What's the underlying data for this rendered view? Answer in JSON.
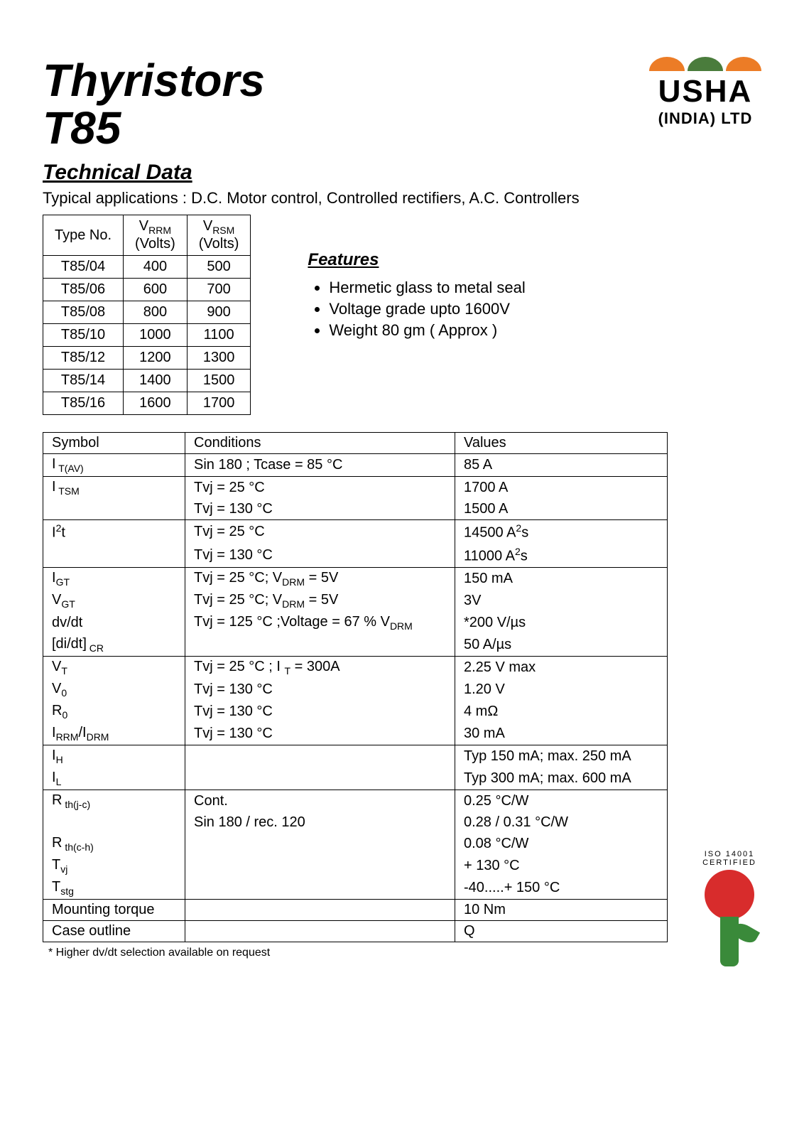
{
  "header": {
    "title1": "Thyristors",
    "title2": "T85",
    "logo_brand": "USHA",
    "logo_sub": "(INDIA) LTD",
    "swoosh_colors": [
      "#ec7c26",
      "#4a7c3c",
      "#ec7c26"
    ]
  },
  "subtitle": "Technical Data",
  "applications": "Typical applications : D.C. Motor control, Controlled rectifiers, A.C. Controllers",
  "type_table": {
    "headers": {
      "col1": "Type No.",
      "col2_main": "V",
      "col2_sub": "RRM",
      "col2_unit": "(Volts)",
      "col3_main": "V",
      "col3_sub": "RSM",
      "col3_unit": "(Volts)"
    },
    "rows": [
      {
        "type": "T85/04",
        "vrrm": "400",
        "vrsm": "500"
      },
      {
        "type": "T85/06",
        "vrrm": "600",
        "vrsm": "700"
      },
      {
        "type": "T85/08",
        "vrrm": "800",
        "vrsm": "900"
      },
      {
        "type": "T85/10",
        "vrrm": "1000",
        "vrsm": "1100"
      },
      {
        "type": "T85/12",
        "vrrm": "1200",
        "vrsm": "1300"
      },
      {
        "type": "T85/14",
        "vrrm": "1400",
        "vrsm": "1500"
      },
      {
        "type": "T85/16",
        "vrrm": "1600",
        "vrsm": "1700"
      }
    ]
  },
  "features": {
    "title": "Features",
    "items": [
      "Hermetic glass to metal seal",
      "Voltage grade upto 1600V",
      "Weight  80 gm ( Approx )"
    ]
  },
  "spec_table": {
    "headers": {
      "symbol": "Symbol",
      "conditions": "Conditions",
      "values": "Values"
    },
    "rows": [
      {
        "sym_html": "I<span class='sub'> T(AV)</span>",
        "cond": "Sin 180 ; Tcase = 85 °C",
        "val": "85 A",
        "group": "single"
      },
      {
        "sym_html": "I<span class='sub'> TSM</span>",
        "cond": "Tvj = 25 °C",
        "val": "1700 A",
        "group": "start"
      },
      {
        "sym_html": "",
        "cond": "Tvj = 130 °C",
        "val": "1500 A",
        "group": "end"
      },
      {
        "sym_html": "I<span class='sup'>2</span>t",
        "cond": "Tvj = 25 °C",
        "val_html": "14500 A<span class='sup'>2</span>s",
        "group": "start"
      },
      {
        "sym_html": "",
        "cond": "Tvj = 130 °C",
        "val_html": "11000 A<span class='sup'>2</span>s",
        "group": "end"
      },
      {
        "sym_html": "I<span class='sub'>GT</span>",
        "cond_html": "Tvj = 25 °C; V<span class='sub'>DRM</span> = 5V",
        "val": "150 mA",
        "group": "start"
      },
      {
        "sym_html": "V<span class='sub'>GT</span>",
        "cond_html": "Tvj = 25 °C; V<span class='sub'>DRM</span> = 5V",
        "val": "3V",
        "group": "mid"
      },
      {
        "sym_html": "dv/dt",
        "cond_html": "Tvj = 125 °C ;Voltage = 67 % V<span class='sub'>DRM</span>",
        "val": "*200 V/µs",
        "group": "mid"
      },
      {
        "sym_html": "[di/dt]<span class='sub'> CR</span>",
        "cond": "",
        "val": "50 A/µs",
        "group": "end"
      },
      {
        "sym_html": "V<span class='sub'>T</span>",
        "cond_html": "Tvj = 25 °C ; I <span class='sub'>T</span> = 300A",
        "val": "2.25  V max",
        "group": "start"
      },
      {
        "sym_html": "V<span class='sub'>0</span>",
        "cond": "Tvj = 130 °C",
        "val": "1.20  V",
        "group": "mid"
      },
      {
        "sym_html": "R<span class='sub'>0</span>",
        "cond": "Tvj = 130 °C",
        "val": "4 mΩ",
        "group": "mid"
      },
      {
        "sym_html": "I<span class='sub'>RRM</span>/I<span class='sub'>DRM</span>",
        "cond": "Tvj = 130 °C",
        "val": "30 mA",
        "group": "end"
      },
      {
        "sym_html": "I<span class='sub'>H</span>",
        "cond": "",
        "val": "Typ 150 mA; max. 250 mA",
        "group": "start"
      },
      {
        "sym_html": "I<span class='sub'>L</span>",
        "cond": "",
        "val": "Typ 300 mA; max. 600 mA",
        "group": "end"
      },
      {
        "sym_html": "R<span class='sub'> th(j-c)</span>",
        "cond": "Cont.",
        "val": "0.25 °C/W",
        "group": "start"
      },
      {
        "sym_html": "",
        "cond": "Sin 180 / rec. 120",
        "val": "0.28 / 0.31 °C/W",
        "group": "mid"
      },
      {
        "sym_html": "R<span class='sub'> th(c-h)</span>",
        "cond": "",
        "val": "0.08 °C/W",
        "group": "mid"
      },
      {
        "sym_html": "T<span class='sub'>vj</span>",
        "cond": "",
        "val": "+ 130 °C",
        "group": "mid"
      },
      {
        "sym_html": "T<span class='sub'>stg</span>",
        "cond": "",
        "val": "-40.....+ 150 °C",
        "group": "end"
      },
      {
        "sym_html": "Mounting torque",
        "cond": "",
        "val": "10 Nm",
        "group": "single"
      },
      {
        "sym_html": "Case outline",
        "cond": "",
        "val": "Q",
        "group": "single"
      }
    ]
  },
  "footnote": "* Higher dv/dt  selection available on request",
  "cert": {
    "arc_text": "ISO 14001 CERTIFIED"
  }
}
